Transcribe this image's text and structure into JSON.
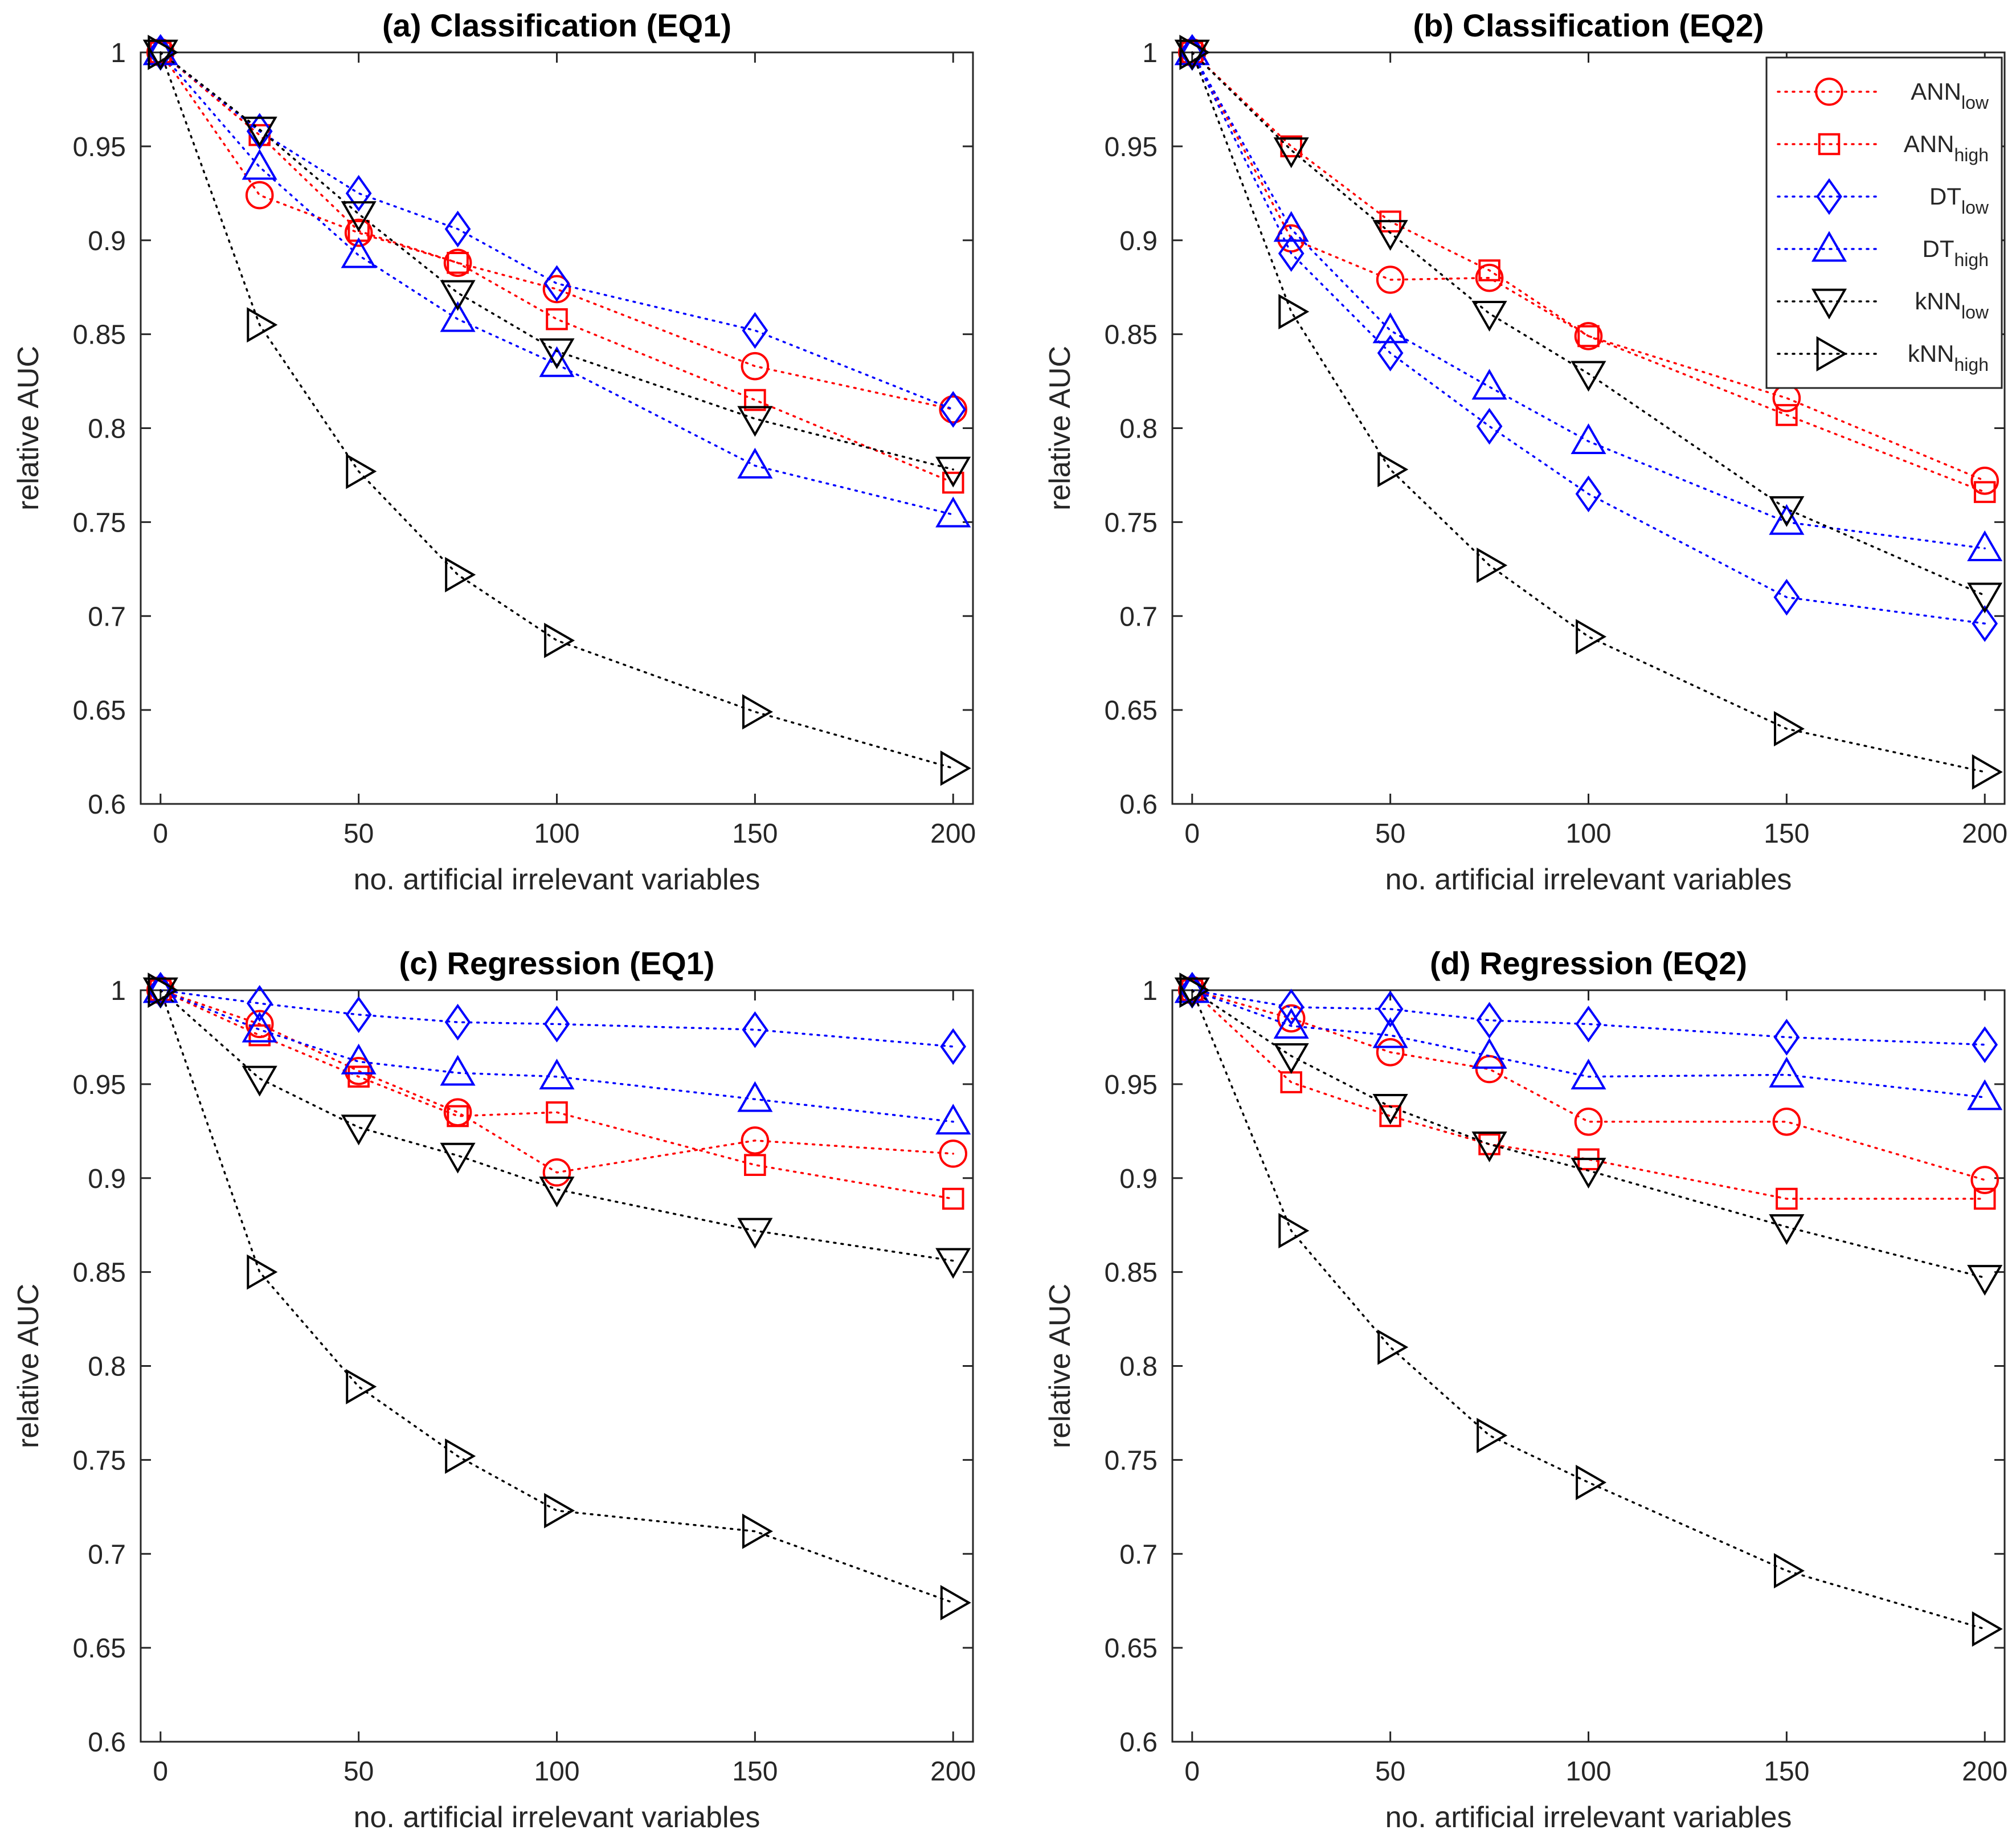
{
  "chart_data": [
    {
      "type": "line",
      "title": "(a) Classification (EQ1)",
      "xlabel": "no. artificial irrelevant variables",
      "ylabel": "relative AUC",
      "xlim": [
        -5,
        205
      ],
      "ylim": [
        0.6,
        1.0
      ],
      "xticks": [
        "0",
        "50",
        "100",
        "150",
        "200"
      ],
      "yticks": [
        "0.6",
        "0.65",
        "0.7",
        "0.75",
        "0.8",
        "0.85",
        "0.9",
        "0.95",
        "1"
      ],
      "x": [
        0,
        25,
        50,
        75,
        100,
        150,
        200
      ],
      "series": [
        {
          "name": "ANN_low",
          "values": [
            1.0,
            0.924,
            0.904,
            0.888,
            0.874,
            0.833,
            0.81
          ]
        },
        {
          "name": "ANN_high",
          "values": [
            1.0,
            0.956,
            0.905,
            0.888,
            0.858,
            0.815,
            0.771
          ]
        },
        {
          "name": "DT_low",
          "values": [
            1.0,
            0.958,
            0.925,
            0.906,
            0.877,
            0.852,
            0.81
          ]
        },
        {
          "name": "DT_high",
          "values": [
            1.0,
            0.939,
            0.892,
            0.858,
            0.834,
            0.78,
            0.754
          ]
        },
        {
          "name": "kNN_low",
          "values": [
            1.0,
            0.959,
            0.914,
            0.872,
            0.841,
            0.805,
            0.778
          ]
        },
        {
          "name": "kNN_high",
          "values": [
            1.0,
            0.855,
            0.777,
            0.722,
            0.687,
            0.649,
            0.619
          ]
        }
      ]
    },
    {
      "type": "line",
      "title": "(b) Classification (EQ2)",
      "xlabel": "no. artificial irrelevant variables",
      "ylabel": "relative AUC",
      "xlim": [
        -5,
        205
      ],
      "ylim": [
        0.6,
        1.0
      ],
      "xticks": [
        "0",
        "50",
        "100",
        "150",
        "200"
      ],
      "yticks": [
        "0.6",
        "0.65",
        "0.7",
        "0.75",
        "0.8",
        "0.85",
        "0.9",
        "0.95",
        "1"
      ],
      "x": [
        0,
        25,
        50,
        75,
        100,
        150,
        200
      ],
      "series": [
        {
          "name": "ANN_low",
          "values": [
            1.0,
            0.901,
            0.879,
            0.88,
            0.849,
            0.816,
            0.772
          ]
        },
        {
          "name": "ANN_high",
          "values": [
            1.0,
            0.95,
            0.91,
            0.884,
            0.849,
            0.807,
            0.766
          ]
        },
        {
          "name": "DT_low",
          "values": [
            1.0,
            0.893,
            0.84,
            0.801,
            0.765,
            0.71,
            0.696
          ]
        },
        {
          "name": "DT_high",
          "values": [
            1.0,
            0.906,
            0.852,
            0.822,
            0.793,
            0.75,
            0.736
          ]
        },
        {
          "name": "kNN_low",
          "values": [
            1.0,
            0.948,
            0.904,
            0.861,
            0.829,
            0.757,
            0.711
          ]
        },
        {
          "name": "kNN_high",
          "values": [
            1.0,
            0.862,
            0.778,
            0.727,
            0.689,
            0.64,
            0.617
          ]
        }
      ]
    },
    {
      "type": "line",
      "title": "(c) Regression (EQ1)",
      "xlabel": "no. artificial irrelevant variables",
      "ylabel": "relative AUC",
      "xlim": [
        -5,
        205
      ],
      "ylim": [
        0.6,
        1.0
      ],
      "xticks": [
        "0",
        "50",
        "100",
        "150",
        "200"
      ],
      "yticks": [
        "0.6",
        "0.65",
        "0.7",
        "0.75",
        "0.8",
        "0.85",
        "0.9",
        "0.95",
        "1"
      ],
      "x": [
        0,
        25,
        50,
        75,
        100,
        150,
        200
      ],
      "series": [
        {
          "name": "ANN_low",
          "values": [
            1.0,
            0.982,
            0.957,
            0.935,
            0.903,
            0.92,
            0.913
          ]
        },
        {
          "name": "ANN_high",
          "values": [
            1.0,
            0.976,
            0.954,
            0.933,
            0.935,
            0.907,
            0.889
          ]
        },
        {
          "name": "DT_low",
          "values": [
            1.0,
            0.993,
            0.987,
            0.983,
            0.982,
            0.979,
            0.97
          ]
        },
        {
          "name": "DT_high",
          "values": [
            1.0,
            0.979,
            0.962,
            0.956,
            0.954,
            0.942,
            0.93
          ]
        },
        {
          "name": "kNN_low",
          "values": [
            1.0,
            0.953,
            0.927,
            0.912,
            0.894,
            0.872,
            0.856
          ]
        },
        {
          "name": "kNN_high",
          "values": [
            1.0,
            0.85,
            0.789,
            0.752,
            0.723,
            0.712,
            0.674
          ]
        }
      ]
    },
    {
      "type": "line",
      "title": "(d) Regression (EQ2)",
      "xlabel": "no. artificial irrelevant variables",
      "ylabel": "relative AUC",
      "xlim": [
        -5,
        205
      ],
      "ylim": [
        0.6,
        1.0
      ],
      "xticks": [
        "0",
        "50",
        "100",
        "150",
        "200"
      ],
      "yticks": [
        "0.6",
        "0.65",
        "0.7",
        "0.75",
        "0.8",
        "0.85",
        "0.9",
        "0.95",
        "1"
      ],
      "x": [
        0,
        25,
        50,
        75,
        100,
        150,
        200
      ],
      "series": [
        {
          "name": "ANN_low",
          "values": [
            1.0,
            0.985,
            0.967,
            0.958,
            0.93,
            0.93,
            0.899
          ]
        },
        {
          "name": "ANN_high",
          "values": [
            1.0,
            0.951,
            0.933,
            0.918,
            0.91,
            0.889,
            0.889
          ]
        },
        {
          "name": "DT_low",
          "values": [
            1.0,
            0.991,
            0.99,
            0.984,
            0.982,
            0.975,
            0.971
          ]
        },
        {
          "name": "DT_high",
          "values": [
            1.0,
            0.981,
            0.976,
            0.965,
            0.954,
            0.955,
            0.943
          ]
        },
        {
          "name": "kNN_low",
          "values": [
            1.0,
            0.965,
            0.938,
            0.918,
            0.904,
            0.874,
            0.847
          ]
        },
        {
          "name": "kNN_high",
          "values": [
            1.0,
            0.872,
            0.81,
            0.763,
            0.738,
            0.691,
            0.66
          ]
        }
      ]
    }
  ],
  "legend": {
    "placement": "top-right of panel (b)",
    "entries": [
      {
        "base": "ANN",
        "sub": "low"
      },
      {
        "base": "ANN",
        "sub": "high"
      },
      {
        "base": "DT",
        "sub": "low"
      },
      {
        "base": "DT",
        "sub": "high"
      },
      {
        "base": "kNN",
        "sub": "low"
      },
      {
        "base": "kNN",
        "sub": "high"
      }
    ]
  },
  "series_style": {
    "ANN_low": {
      "color": "#ff0000",
      "marker": "circle"
    },
    "ANN_high": {
      "color": "#ff0000",
      "marker": "square"
    },
    "DT_low": {
      "color": "#0000ff",
      "marker": "diamond"
    },
    "DT_high": {
      "color": "#0000ff",
      "marker": "triangle-up"
    },
    "kNN_low": {
      "color": "#000000",
      "marker": "triangle-down"
    },
    "kNN_high": {
      "color": "#000000",
      "marker": "triangle-right"
    }
  }
}
